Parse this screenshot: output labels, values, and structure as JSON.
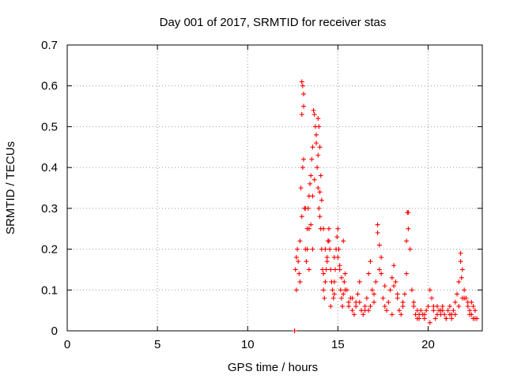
{
  "chart_data": {
    "type": "scatter",
    "title": "Day 001 of 2017, SRMTID for receiver stas",
    "xlabel": "GPS time / hours",
    "ylabel": "SRMTID / TECUs",
    "xlim": [
      0,
      23
    ],
    "ylim": [
      0,
      0.7
    ],
    "xticks": [
      0,
      5,
      10,
      15,
      20
    ],
    "xtick_labels": [
      "0",
      "5",
      "10",
      "15",
      "20"
    ],
    "yticks": [
      0,
      0.1,
      0.2,
      0.3,
      0.4,
      0.5,
      0.6,
      0.7
    ],
    "ytick_labels": [
      "0",
      "0.1",
      "0.2",
      "0.3",
      "0.4",
      "0.5",
      "0.6",
      "0.7"
    ],
    "grid": true,
    "marker": "+",
    "color": "#ff0000",
    "series": [
      {
        "name": "stas",
        "x": [
          12.6,
          12.65,
          12.7,
          12.75,
          12.8,
          12.85,
          12.9,
          12.95,
          13.0,
          13.0,
          13.05,
          13.1,
          13.1,
          13.15,
          13.2,
          13.25,
          13.3,
          13.35,
          13.4,
          13.45,
          13.5,
          13.55,
          13.6,
          13.65,
          13.7,
          13.75,
          13.8,
          13.85,
          13.9,
          13.95,
          14.0,
          14.05,
          14.1,
          14.15,
          14.2,
          14.25,
          14.3,
          14.35,
          14.4,
          14.45,
          14.5,
          14.55,
          14.6,
          14.65,
          14.7,
          14.75,
          14.8,
          14.85,
          14.9,
          14.95,
          15.0,
          15.05,
          15.1,
          15.15,
          15.2,
          15.25,
          15.3,
          15.35,
          15.4,
          15.5,
          15.6,
          15.7,
          15.8,
          15.9,
          16.0,
          16.1,
          16.2,
          16.3,
          16.4,
          16.5,
          16.6,
          16.7,
          16.8,
          16.9,
          17.0,
          17.1,
          17.2,
          17.3,
          17.4,
          17.5,
          17.6,
          17.7,
          17.8,
          17.9,
          18.0,
          18.1,
          18.2,
          18.3,
          18.4,
          18.5,
          18.6,
          18.7,
          18.8,
          18.9,
          19.0,
          19.1,
          19.2,
          19.3,
          19.4,
          19.5,
          19.6,
          19.7,
          19.8,
          19.9,
          20.0,
          20.1,
          20.2,
          20.3,
          20.4,
          20.5,
          20.6,
          20.7,
          20.8,
          20.9,
          21.0,
          21.1,
          21.2,
          21.3,
          21.4,
          21.5,
          21.6,
          21.7,
          21.8,
          21.9,
          22.0,
          22.1,
          22.2,
          22.3,
          22.4,
          22.5,
          22.6,
          22.7,
          12.9,
          13.0,
          13.05,
          13.2,
          13.4,
          13.6,
          13.7,
          13.8,
          13.9,
          13.95,
          14.0,
          14.05,
          14.1,
          14.2,
          14.3,
          14.4,
          14.6,
          14.8,
          15.0,
          15.2,
          15.4,
          15.6,
          16.2,
          16.8,
          17.2,
          17.4,
          18.0,
          18.8,
          18.85,
          18.9,
          19.5,
          20.5,
          21.0,
          21.5,
          21.8,
          21.85,
          22.0,
          22.2,
          22.5,
          12.7,
          13.1,
          13.3,
          13.5,
          13.9,
          14.2,
          14.5,
          15.1,
          15.8,
          16.5,
          17.0,
          17.6,
          18.3,
          19.2,
          19.8,
          20.3,
          20.8,
          21.3,
          21.7,
          22.3,
          22.6,
          13.4,
          13.6,
          14.0,
          14.8,
          15.3,
          16.0,
          16.7,
          17.3,
          18.1,
          18.6,
          19.4,
          20.1,
          20.7,
          21.2,
          21.9,
          22.4
        ],
        "y": [
          0.0,
          0.15,
          0.18,
          0.2,
          0.17,
          0.14,
          0.22,
          0.35,
          0.53,
          0.61,
          0.6,
          0.55,
          0.42,
          0.3,
          0.2,
          0.17,
          0.25,
          0.3,
          0.33,
          0.36,
          0.38,
          0.42,
          0.45,
          0.54,
          0.53,
          0.5,
          0.46,
          0.4,
          0.35,
          0.3,
          0.28,
          0.25,
          0.2,
          0.15,
          0.1,
          0.08,
          0.12,
          0.15,
          0.18,
          0.22,
          0.25,
          0.2,
          0.15,
          0.12,
          0.1,
          0.08,
          0.12,
          0.15,
          0.2,
          0.23,
          0.25,
          0.2,
          0.15,
          0.1,
          0.08,
          0.06,
          0.09,
          0.12,
          0.14,
          0.1,
          0.06,
          0.08,
          0.05,
          0.04,
          0.06,
          0.09,
          0.07,
          0.05,
          0.04,
          0.06,
          0.08,
          0.14,
          0.17,
          0.1,
          0.07,
          0.12,
          0.24,
          0.21,
          0.14,
          0.08,
          0.06,
          0.05,
          0.07,
          0.1,
          0.13,
          0.16,
          0.12,
          0.08,
          0.05,
          0.04,
          0.06,
          0.09,
          0.14,
          0.29,
          0.2,
          0.1,
          0.06,
          0.04,
          0.03,
          0.04,
          0.05,
          0.04,
          0.03,
          0.05,
          0.06,
          0.1,
          0.08,
          0.05,
          0.03,
          0.04,
          0.05,
          0.04,
          0.06,
          0.04,
          0.03,
          0.05,
          0.06,
          0.04,
          0.05,
          0.07,
          0.09,
          0.12,
          0.19,
          0.15,
          0.1,
          0.08,
          0.06,
          0.05,
          0.04,
          0.06,
          0.05,
          0.03,
          0.12,
          0.28,
          0.4,
          0.3,
          0.25,
          0.33,
          0.37,
          0.48,
          0.52,
          0.5,
          0.45,
          0.38,
          0.32,
          0.25,
          0.2,
          0.17,
          0.06,
          0.09,
          0.18,
          0.13,
          0.1,
          0.07,
          0.12,
          0.06,
          0.26,
          0.18,
          0.04,
          0.22,
          0.29,
          0.25,
          0.03,
          0.06,
          0.03,
          0.04,
          0.17,
          0.13,
          0.08,
          0.07,
          0.03,
          0.1,
          0.58,
          0.2,
          0.26,
          0.43,
          0.14,
          0.22,
          0.16,
          0.08,
          0.05,
          0.09,
          0.11,
          0.09,
          0.07,
          0.04,
          0.06,
          0.05,
          0.03,
          0.06,
          0.04,
          0.03,
          0.15,
          0.2,
          0.34,
          0.18,
          0.22,
          0.07,
          0.05,
          0.15,
          0.11,
          0.07,
          0.05,
          0.02,
          0.05,
          0.04,
          0.08,
          0.07
        ]
      }
    ]
  }
}
